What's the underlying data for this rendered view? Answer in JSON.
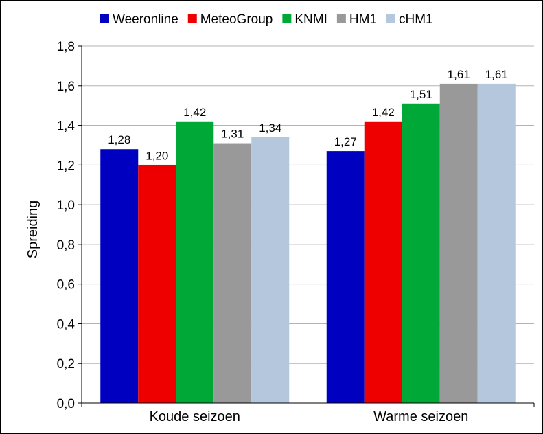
{
  "chart_data": {
    "type": "bar",
    "title": "",
    "xlabel": "",
    "ylabel": "Spreiding",
    "categories": [
      "Koude seizoen",
      "Warme seizoen"
    ],
    "series": [
      {
        "name": "Weeronline",
        "color": "#0000c0",
        "values": [
          1.28,
          1.27
        ],
        "labels": [
          "1,28",
          "1,27"
        ]
      },
      {
        "name": "MeteoGroup",
        "color": "#ee0000",
        "values": [
          1.2,
          1.42
        ],
        "labels": [
          "1,20",
          "1,42"
        ]
      },
      {
        "name": "KNMI",
        "color": "#00a837",
        "values": [
          1.42,
          1.51
        ],
        "labels": [
          "1,42",
          "1,51"
        ]
      },
      {
        "name": "HM1",
        "color": "#999999",
        "values": [
          1.31,
          1.61
        ],
        "labels": [
          "1,31",
          "1,61"
        ]
      },
      {
        "name": "cHM1",
        "color": "#b4c7dc",
        "values": [
          1.34,
          1.61
        ],
        "labels": [
          "1,34",
          "1,61"
        ]
      }
    ],
    "ylim": [
      0,
      1.8
    ],
    "yticks": [
      0,
      0.2,
      0.4,
      0.6,
      0.8,
      1.0,
      1.2,
      1.4,
      1.6,
      1.8
    ],
    "ytick_labels": [
      "0,0",
      "0,2",
      "0,4",
      "0,6",
      "0,8",
      "1,0",
      "1,2",
      "1,4",
      "1,6",
      "1,8"
    ],
    "grid": "horizontal",
    "legend_position": "top"
  }
}
